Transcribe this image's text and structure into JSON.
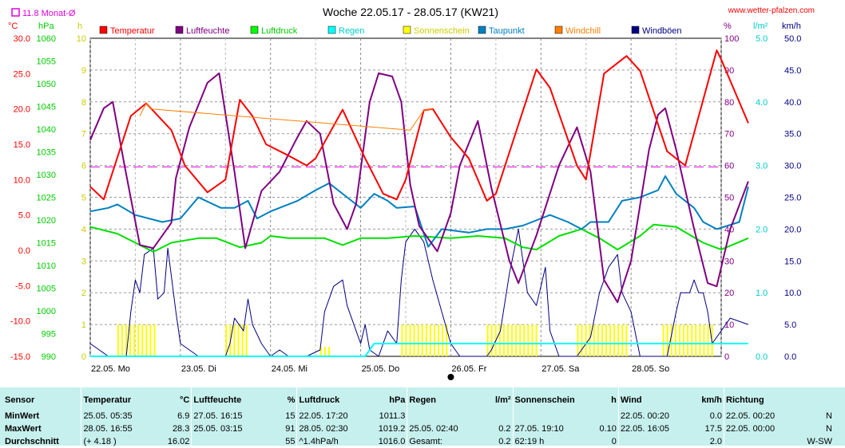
{
  "title": "Woche 22.05.17 - 28.05.17 (KW21)",
  "website": "www.wetter-pfalzen.com",
  "avg_marker": {
    "label": "11.8 Monat-Ø",
    "value": 11.8
  },
  "chart_data": {
    "type": "line",
    "x": [
      "22.05. Mo",
      "23.05. Di",
      "24.05. Mi",
      "25.05. Do",
      "26.05. Fr",
      "27.05. Sa",
      "28.05. So"
    ],
    "axes": {
      "temp": {
        "unit": "°C",
        "range": [
          -15,
          30
        ],
        "ticks": [
          "30.0",
          "25.0",
          "20.0",
          "15.0",
          "10.0",
          "5.0",
          "0.0",
          "-5.0",
          "-10.0",
          "-15.0"
        ],
        "color": "#ff0000"
      },
      "pressure": {
        "unit": "hPa",
        "range": [
          990,
          1060
        ],
        "ticks": [
          "1060",
          "1055",
          "1050",
          "1045",
          "1040",
          "1035",
          "1030",
          "1025",
          "1020",
          "1015",
          "1010",
          "1005",
          "1000",
          "995",
          "990"
        ],
        "color": "#00cc00"
      },
      "sun": {
        "unit": "h",
        "range": [
          0,
          10
        ],
        "ticks": [
          "10",
          "9",
          "8",
          "7",
          "6",
          "5",
          "4",
          "3",
          "2",
          "1",
          "0"
        ],
        "color": "#cccc00"
      },
      "humidity": {
        "unit": "%",
        "range": [
          0,
          100
        ],
        "ticks": [
          "100",
          "90",
          "80",
          "70",
          "60",
          "50",
          "40",
          "30",
          "20",
          "10",
          "0"
        ],
        "color": "#800080"
      },
      "rain": {
        "unit": "l/m²",
        "range": [
          0,
          5
        ],
        "ticks": [
          "5.0",
          "4.0",
          "3.0",
          "2.0",
          "1.0",
          "0.0"
        ],
        "color": "#00cccc"
      },
      "wind": {
        "unit": "km/h",
        "range": [
          0,
          50
        ],
        "ticks": [
          "50.0",
          "45.0",
          "40.0",
          "35.0",
          "30.0",
          "25.0",
          "20.0",
          "15.0",
          "10.0",
          "5.0",
          "0.0"
        ],
        "color": "#000080"
      }
    },
    "legend": [
      {
        "name": "Temperatur",
        "color": "#ff0000"
      },
      {
        "name": "Luftfeuchte",
        "color": "#800080"
      },
      {
        "name": "Luftdruck",
        "color": "#00ff00"
      },
      {
        "name": "Regen",
        "color": "#00ffff"
      },
      {
        "name": "Sonnenschein",
        "color": "#ffff00"
      },
      {
        "name": "Taupunkt",
        "color": "#0080c0"
      },
      {
        "name": "Windchill",
        "color": "#ff8000"
      },
      {
        "name": "Windböen",
        "color": "#000080"
      }
    ],
    "series": {
      "temperature": {
        "color": "#ff0000",
        "points": [
          [
            0,
            9
          ],
          [
            0.15,
            7.2
          ],
          [
            0.45,
            19
          ],
          [
            0.62,
            20.8
          ],
          [
            0.9,
            17
          ],
          [
            1.05,
            12
          ],
          [
            1.3,
            8.2
          ],
          [
            1.5,
            10
          ],
          [
            1.66,
            21.3
          ],
          [
            1.8,
            19
          ],
          [
            1.95,
            15
          ],
          [
            2.2,
            13.4
          ],
          [
            2.4,
            12
          ],
          [
            2.5,
            13
          ],
          [
            2.8,
            19.9
          ],
          [
            3.05,
            13
          ],
          [
            3.25,
            8
          ],
          [
            3.4,
            7.2
          ],
          [
            3.5,
            10
          ],
          [
            3.7,
            19.8
          ],
          [
            3.8,
            20
          ],
          [
            4.0,
            16
          ],
          [
            4.2,
            13
          ],
          [
            4.4,
            7
          ],
          [
            4.5,
            8
          ],
          [
            4.95,
            25.6
          ],
          [
            5.1,
            23
          ],
          [
            5.4,
            12
          ],
          [
            5.5,
            10
          ],
          [
            5.7,
            25
          ],
          [
            5.95,
            27.5
          ],
          [
            6.1,
            25.4
          ],
          [
            6.4,
            14
          ],
          [
            6.6,
            12
          ],
          [
            6.95,
            28.3
          ],
          [
            7.0,
            27
          ],
          [
            7.3,
            18
          ]
        ]
      },
      "humidity": {
        "color": "#800080",
        "points": [
          [
            0,
            68
          ],
          [
            0.15,
            78
          ],
          [
            0.25,
            80
          ],
          [
            0.38,
            60
          ],
          [
            0.55,
            35
          ],
          [
            0.7,
            34
          ],
          [
            0.9,
            42
          ],
          [
            0.95,
            56
          ],
          [
            1.1,
            72
          ],
          [
            1.3,
            86
          ],
          [
            1.43,
            89
          ],
          [
            1.6,
            58
          ],
          [
            1.72,
            34
          ],
          [
            1.9,
            52
          ],
          [
            2.1,
            58
          ],
          [
            2.3,
            69
          ],
          [
            2.4,
            74
          ],
          [
            2.55,
            70
          ],
          [
            2.7,
            48
          ],
          [
            2.85,
            40
          ],
          [
            2.95,
            48
          ],
          [
            3.1,
            80
          ],
          [
            3.2,
            89
          ],
          [
            3.35,
            88
          ],
          [
            3.45,
            80
          ],
          [
            3.55,
            54
          ],
          [
            3.65,
            41
          ],
          [
            3.85,
            33
          ],
          [
            4.0,
            45
          ],
          [
            4.1,
            60
          ],
          [
            4.3,
            74
          ],
          [
            4.45,
            53
          ],
          [
            4.65,
            30
          ],
          [
            4.75,
            23
          ],
          [
            4.95,
            38
          ],
          [
            5.2,
            60
          ],
          [
            5.4,
            72
          ],
          [
            5.55,
            58
          ],
          [
            5.7,
            24
          ],
          [
            5.85,
            17
          ],
          [
            6.0,
            30
          ],
          [
            6.2,
            65
          ],
          [
            6.3,
            76
          ],
          [
            6.38,
            78
          ],
          [
            6.5,
            65
          ],
          [
            6.7,
            40
          ],
          [
            6.85,
            23
          ],
          [
            6.95,
            22
          ],
          [
            7.1,
            40
          ],
          [
            7.3,
            55
          ]
        ]
      },
      "pressure": {
        "color": "#00e000",
        "points": [
          [
            0,
            1018.5
          ],
          [
            0.3,
            1017
          ],
          [
            0.6,
            1014
          ],
          [
            0.7,
            1013
          ],
          [
            0.9,
            1015
          ],
          [
            1.2,
            1016
          ],
          [
            1.4,
            1016
          ],
          [
            1.66,
            1014
          ],
          [
            1.9,
            1015
          ],
          [
            2.0,
            1016.5
          ],
          [
            2.2,
            1016
          ],
          [
            2.6,
            1016
          ],
          [
            2.8,
            1014.5
          ],
          [
            3.0,
            1016
          ],
          [
            3.3,
            1016
          ],
          [
            3.6,
            1016.5
          ],
          [
            4.0,
            1016
          ],
          [
            4.3,
            1016.5
          ],
          [
            4.6,
            1016
          ],
          [
            4.8,
            1014
          ],
          [
            4.95,
            1013.5
          ],
          [
            5.2,
            1016.5
          ],
          [
            5.45,
            1018
          ],
          [
            5.65,
            1016
          ],
          [
            5.85,
            1013.5
          ],
          [
            6.1,
            1016.5
          ],
          [
            6.25,
            1019
          ],
          [
            6.5,
            1018.5
          ],
          [
            6.8,
            1015
          ],
          [
            7.0,
            1013.5
          ],
          [
            7.3,
            1016
          ]
        ]
      },
      "dewpoint": {
        "color": "#0080c0",
        "points": [
          [
            0,
            5.5
          ],
          [
            0.2,
            6
          ],
          [
            0.3,
            6.5
          ],
          [
            0.5,
            5
          ],
          [
            0.8,
            4
          ],
          [
            1.0,
            4.5
          ],
          [
            1.2,
            7.5
          ],
          [
            1.45,
            6
          ],
          [
            1.6,
            6
          ],
          [
            1.75,
            7
          ],
          [
            1.85,
            4.5
          ],
          [
            2.0,
            5.5
          ],
          [
            2.3,
            7
          ],
          [
            2.5,
            8.5
          ],
          [
            2.65,
            9.5
          ],
          [
            2.85,
            7.5
          ],
          [
            3.0,
            6
          ],
          [
            3.15,
            8
          ],
          [
            3.3,
            7
          ],
          [
            3.4,
            6
          ],
          [
            3.6,
            6.2
          ],
          [
            3.75,
            0.5
          ],
          [
            3.9,
            3
          ],
          [
            4.2,
            2.5
          ],
          [
            4.4,
            3
          ],
          [
            4.6,
            3
          ],
          [
            4.8,
            3.5
          ],
          [
            5.1,
            5
          ],
          [
            5.3,
            4
          ],
          [
            5.45,
            3
          ],
          [
            5.55,
            4
          ],
          [
            5.75,
            4
          ],
          [
            5.9,
            7
          ],
          [
            6.1,
            7.5
          ],
          [
            6.3,
            8.5
          ],
          [
            6.38,
            10.5
          ],
          [
            6.5,
            8
          ],
          [
            6.7,
            6
          ],
          [
            6.8,
            4
          ],
          [
            6.95,
            3
          ],
          [
            7.2,
            4
          ],
          [
            7.3,
            9
          ]
        ]
      },
      "windchill": {
        "color": "#ff8000",
        "points": [
          [
            0.55,
            19
          ],
          [
            0.62,
            20.8
          ],
          [
            0.68,
            20
          ],
          [
            3.55,
            17
          ],
          [
            3.7,
            19.8
          ],
          [
            3.8,
            20
          ]
        ]
      },
      "gusts": {
        "color": "#000080",
        "points": [
          [
            0,
            2
          ],
          [
            0.1,
            1
          ],
          [
            0.2,
            0
          ],
          [
            0.4,
            0
          ],
          [
            0.45,
            7
          ],
          [
            0.5,
            12
          ],
          [
            0.55,
            10
          ],
          [
            0.6,
            16
          ],
          [
            0.7,
            17
          ],
          [
            0.75,
            9
          ],
          [
            0.82,
            10
          ],
          [
            0.86,
            17
          ],
          [
            0.95,
            7
          ],
          [
            1.0,
            2
          ],
          [
            1.2,
            0
          ],
          [
            1.5,
            0
          ],
          [
            1.55,
            2
          ],
          [
            1.6,
            6
          ],
          [
            1.7,
            4
          ],
          [
            1.75,
            9
          ],
          [
            1.8,
            5
          ],
          [
            1.9,
            2
          ],
          [
            2.0,
            0
          ],
          [
            2.1,
            1
          ],
          [
            2.2,
            0
          ],
          [
            2.4,
            0
          ],
          [
            2.55,
            1
          ],
          [
            2.6,
            7
          ],
          [
            2.7,
            11
          ],
          [
            2.8,
            12
          ],
          [
            2.85,
            8
          ],
          [
            2.95,
            4
          ],
          [
            3.0,
            2
          ],
          [
            3.05,
            5
          ],
          [
            3.1,
            1
          ],
          [
            3.2,
            0
          ],
          [
            3.3,
            4
          ],
          [
            3.4,
            2
          ],
          [
            3.45,
            12
          ],
          [
            3.5,
            18
          ],
          [
            3.6,
            20
          ],
          [
            3.7,
            18
          ],
          [
            3.8,
            12
          ],
          [
            3.9,
            7
          ],
          [
            4.0,
            2
          ],
          [
            4.1,
            0
          ],
          [
            4.3,
            0
          ],
          [
            4.4,
            0
          ],
          [
            4.45,
            1
          ],
          [
            4.55,
            4
          ],
          [
            4.65,
            13
          ],
          [
            4.75,
            20
          ],
          [
            4.85,
            10
          ],
          [
            4.95,
            8
          ],
          [
            5.05,
            14
          ],
          [
            5.1,
            4
          ],
          [
            5.2,
            0
          ],
          [
            5.4,
            0
          ],
          [
            5.55,
            3
          ],
          [
            5.65,
            10
          ],
          [
            5.75,
            14
          ],
          [
            5.85,
            16
          ],
          [
            5.9,
            10
          ],
          [
            6.0,
            7
          ],
          [
            6.1,
            0
          ],
          [
            6.3,
            0
          ],
          [
            6.4,
            0
          ],
          [
            6.5,
            7
          ],
          [
            6.55,
            10
          ],
          [
            6.65,
            10
          ],
          [
            6.7,
            12
          ],
          [
            6.75,
            10
          ],
          [
            6.8,
            10
          ],
          [
            6.85,
            7
          ],
          [
            6.9,
            2
          ],
          [
            7.0,
            4
          ],
          [
            7.1,
            6
          ],
          [
            7.3,
            5
          ]
        ]
      },
      "rain": {
        "color": "#00ffff",
        "points": [
          [
            0,
            0
          ],
          [
            3.05,
            0
          ],
          [
            3.15,
            0.2
          ],
          [
            7.3,
            0.2
          ]
        ]
      },
      "sunshine": {
        "color": "#ffff00",
        "blocks": [
          [
            0.3,
            0.75,
            1.0
          ],
          [
            1.5,
            1.75,
            1.0
          ],
          [
            2.55,
            2.65,
            0.3
          ],
          [
            3.45,
            3.95,
            1.0
          ],
          [
            4.4,
            4.95,
            1.0
          ],
          [
            5.4,
            5.95,
            1.0
          ],
          [
            6.35,
            6.9,
            1.0
          ]
        ]
      },
      "avg_temp_line": {
        "color": "#e000e0",
        "value": 11.8
      }
    }
  },
  "stats": {
    "headers": [
      "Sensor",
      "Temperatur",
      "°C",
      "Luftfeuchte",
      "%",
      "Luftdruck",
      "hPa",
      "Regen",
      "l/m²",
      "Sonnenschein",
      "h",
      "Wind",
      "km/h",
      "Richtung"
    ],
    "rows": [
      [
        "MinWert",
        "25.05. 05:35",
        "6.9",
        "27.05. 16:15",
        "15",
        "22.05. 17:20",
        "1011.3",
        "",
        "",
        "",
        "",
        "22.05. 00:20",
        "0.0",
        "22.05. 00:20",
        "N"
      ],
      [
        "MaxWert",
        "28.05. 16:55",
        "28.3",
        "25.05. 03:15",
        "91",
        "28.05. 02:30",
        "1019.2",
        "25.05. 02:40",
        "0.2",
        "27.05. 19:10",
        "0.10",
        "22.05. 16:05",
        "17.5",
        "22.05. 00:00",
        "N"
      ],
      [
        "Durchschnitt",
        "(+ 4.18 )",
        "16.02",
        "",
        "55",
        "^1.4hPa/h",
        "1016.0",
        "Gesamt:",
        "0.2",
        "62:19 h",
        "0",
        "",
        "2.0",
        "",
        "W-SW"
      ]
    ]
  }
}
